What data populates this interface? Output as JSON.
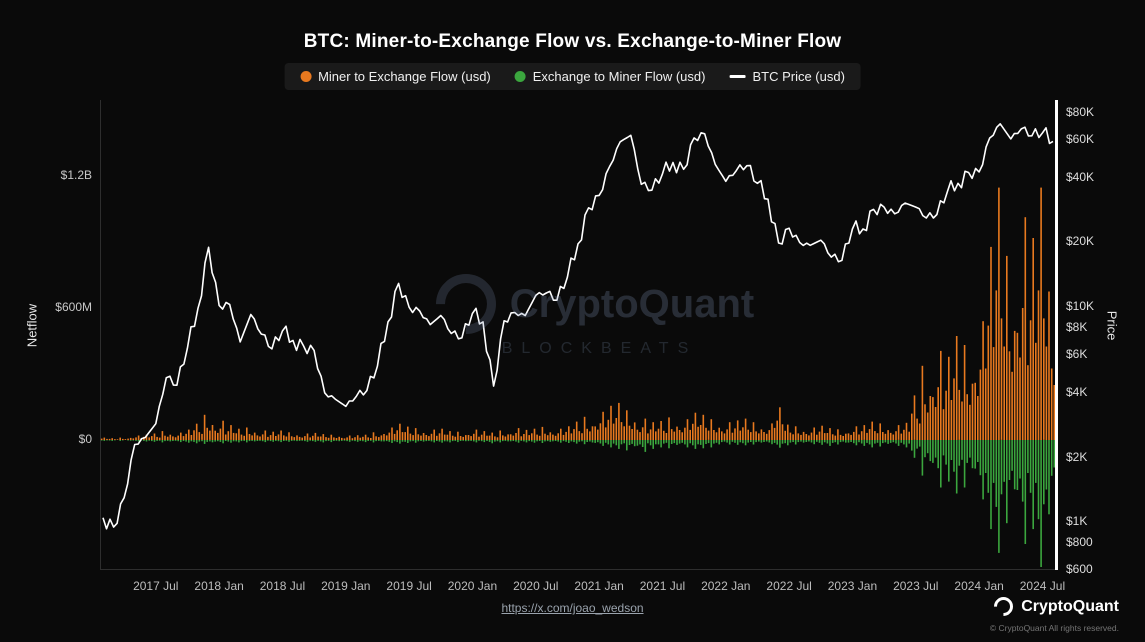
{
  "title": "BTC: Miner-to-Exchange Flow vs. Exchange-to-Miner Flow",
  "legend": {
    "items": [
      {
        "label": "Miner to Exchange Flow (usd)",
        "color": "#e8791f",
        "marker": "dot"
      },
      {
        "label": "Exchange to Miner Flow (usd)",
        "color": "#3ba63e",
        "marker": "dot"
      },
      {
        "label": "BTC Price (usd)",
        "color": "#ffffff",
        "marker": "line"
      }
    ]
  },
  "watermark": {
    "brand": "CryptoQuant",
    "sub": "BLOCKBEATS"
  },
  "footer": {
    "link": "https://x.com/joao_wedson",
    "brand": "CryptoQuant",
    "copyright": "© CryptoQuant All rights reserved."
  },
  "chart_data": {
    "type": "bar-line-combo",
    "title": "BTC: Miner-to-Exchange Flow vs. Exchange-to-Miner Flow",
    "interval": "monthly",
    "left_axis": {
      "label": "Netflow",
      "scale": "linear",
      "ticks": [
        {
          "label": "$1.2B",
          "value_musd": 1200
        },
        {
          "label": "$600M",
          "value_musd": 600
        },
        {
          "label": "$0",
          "value_musd": 0
        }
      ]
    },
    "right_axis": {
      "label": "Price",
      "scale": "log",
      "min_usd": 600,
      "max_usd": 80000,
      "ticks": [
        {
          "label": "$80K",
          "value_usd": 80000
        },
        {
          "label": "$60K",
          "value_usd": 60000
        },
        {
          "label": "$40K",
          "value_usd": 40000
        },
        {
          "label": "$20K",
          "value_usd": 20000
        },
        {
          "label": "$10K",
          "value_usd": 10000
        },
        {
          "label": "$8K",
          "value_usd": 8000
        },
        {
          "label": "$6K",
          "value_usd": 6000
        },
        {
          "label": "$4K",
          "value_usd": 4000
        },
        {
          "label": "$2K",
          "value_usd": 2000
        },
        {
          "label": "$1K",
          "value_usd": 1000
        },
        {
          "label": "$800",
          "value_usd": 800
        },
        {
          "label": "$600",
          "value_usd": 600
        }
      ]
    },
    "x_axis": {
      "start_month": "2017-02",
      "ticks": [
        "2017 Jul",
        "2018 Jan",
        "2018 Jul",
        "2019 Jan",
        "2019 Jul",
        "2020 Jan",
        "2020 Jul",
        "2021 Jan",
        "2021 Jul",
        "2022 Jan",
        "2022 Jul",
        "2023 Jan",
        "2023 Jul",
        "2024 Jan",
        "2024 Jul"
      ]
    },
    "series": [
      {
        "name": "BTC Price (usd)",
        "type": "line",
        "axis": "right",
        "color": "#ffffff",
        "values": [
          1050,
          950,
          1300,
          2300,
          2480,
          2875,
          4700,
          4340,
          6450,
          9900,
          19000,
          10200,
          10300,
          6900,
          9250,
          7500,
          6400,
          7750,
          7000,
          6600,
          6300,
          4000,
          3740,
          3460,
          3850,
          4100,
          5320,
          8550,
          12900,
          10000,
          9600,
          8300,
          9150,
          7550,
          7200,
          9350,
          8550,
          4300,
          8650,
          9450,
          9140,
          11350,
          11650,
          10780,
          13800,
          19700,
          29000,
          33100,
          45200,
          58800,
          63000,
          37300,
          35000,
          41600,
          47100,
          43800,
          61300,
          64000,
          46200,
          38500,
          43200,
          45500,
          37700,
          31800,
          19900,
          23300,
          20000,
          19400,
          20500,
          17100,
          16500,
          23100,
          23100,
          28500,
          29200,
          27200,
          30500,
          29200,
          26000,
          27000,
          34500,
          37700,
          42300,
          42600,
          61200,
          71300,
          60600,
          67500,
          62700,
          64600,
          59000
        ]
      },
      {
        "name": "Miner to Exchange Flow (usd)",
        "type": "bar",
        "axis": "left",
        "unit": "million_usd",
        "color": "#e8791f",
        "values": [
          8,
          6,
          8,
          15,
          18,
          22,
          30,
          25,
          35,
          55,
          85,
          65,
          50,
          38,
          42,
          32,
          28,
          32,
          26,
          22,
          24,
          20,
          18,
          15,
          16,
          18,
          26,
          42,
          55,
          45,
          40,
          35,
          38,
          30,
          28,
          35,
          30,
          25,
          32,
          40,
          34,
          38,
          44,
          38,
          46,
          62,
          78,
          95,
          115,
          125,
          100,
          72,
          60,
          64,
          76,
          70,
          92,
          85,
          70,
          60,
          66,
          72,
          60,
          56,
          110,
          52,
          46,
          42,
          48,
          40,
          36,
          46,
          50,
          62,
          56,
          50,
          58,
          150,
          250,
          300,
          280,
          350,
          320,
          400,
          650,
          850,
          620,
          750,
          680,
          850,
          500
        ]
      },
      {
        "name": "Exchange to Miner Flow (usd)",
        "type": "bar",
        "axis": "left",
        "unit": "million_usd",
        "direction": "negative",
        "color": "#3ba63e",
        "values": [
          3,
          3,
          3,
          5,
          5,
          6,
          8,
          7,
          9,
          11,
          13,
          11,
          9,
          8,
          8,
          7,
          6,
          7,
          6,
          6,
          6,
          8,
          7,
          6,
          6,
          7,
          8,
          10,
          12,
          10,
          9,
          8,
          9,
          8,
          7,
          8,
          7,
          11,
          8,
          9,
          8,
          9,
          10,
          9,
          10,
          12,
          14,
          20,
          25,
          30,
          35,
          40,
          30,
          25,
          28,
          25,
          30,
          28,
          25,
          15,
          16,
          18,
          15,
          14,
          26,
          18,
          15,
          14,
          16,
          20,
          15,
          18,
          20,
          25,
          22,
          20,
          25,
          60,
          120,
          160,
          140,
          180,
          160,
          200,
          300,
          380,
          280,
          350,
          300,
          450,
          250
        ]
      }
    ]
  }
}
